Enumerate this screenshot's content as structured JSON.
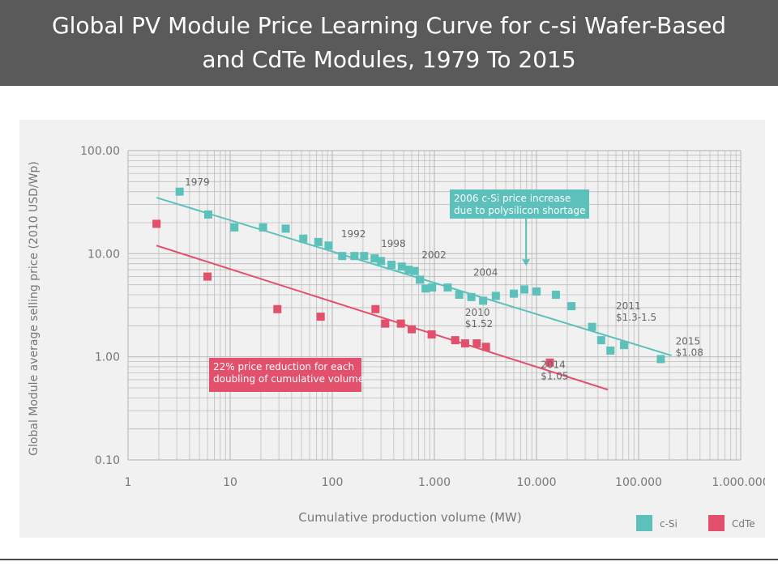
{
  "page_title": "Global PV Module Price Learning Curve for c-si Wafer-Based and CdTe Modules, 1979 To 2015",
  "colors": {
    "csi": "#5cc1bb",
    "cdte": "#e3506c",
    "axis_text": "#777777",
    "grid": "#bdbdbd"
  },
  "chart_data": {
    "type": "scatter",
    "xscale": "log",
    "yscale": "log",
    "xlim": [
      1,
      1000000
    ],
    "ylim": [
      0.1,
      100
    ],
    "xlabel": "Cumulative production volume (MW)",
    "ylabel": "Global Module average selling price (2010 USD/Wp)",
    "x_ticks": [
      {
        "value": 1,
        "label": "1"
      },
      {
        "value": 10,
        "label": "10"
      },
      {
        "value": 100,
        "label": "100"
      },
      {
        "value": 1000,
        "label": "1.000"
      },
      {
        "value": 10000,
        "label": "10.000"
      },
      {
        "value": 100000,
        "label": "100.000"
      },
      {
        "value": 1000000,
        "label": "1.000.000"
      }
    ],
    "y_ticks": [
      {
        "value": 100,
        "label": "100.00"
      },
      {
        "value": 10,
        "label": "10.00"
      },
      {
        "value": 1,
        "label": "1.00"
      },
      {
        "value": 0.1,
        "label": "0.10"
      }
    ],
    "grid": true,
    "legend_position": "bottom-right",
    "series": [
      {
        "name": "c-Si",
        "color": "#5cc1bb",
        "points": [
          [
            3.2,
            40
          ],
          [
            6.1,
            24
          ],
          [
            11,
            18
          ],
          [
            21,
            18
          ],
          [
            35,
            17.5
          ],
          [
            52,
            14
          ],
          [
            73,
            13
          ],
          [
            92,
            12
          ],
          [
            125,
            9.5
          ],
          [
            165,
            9.5
          ],
          [
            205,
            9.5
          ],
          [
            260,
            9
          ],
          [
            300,
            8.5
          ],
          [
            380,
            7.8
          ],
          [
            480,
            7.5
          ],
          [
            560,
            7
          ],
          [
            640,
            6.8
          ],
          [
            720,
            5.6
          ],
          [
            820,
            4.6
          ],
          [
            950,
            4.7
          ],
          [
            1350,
            4.7
          ],
          [
            1750,
            4
          ],
          [
            2300,
            3.8
          ],
          [
            3000,
            3.5
          ],
          [
            4000,
            3.9
          ],
          [
            6000,
            4.1
          ],
          [
            7600,
            4.5
          ],
          [
            10000,
            4.3
          ],
          [
            15500,
            4
          ],
          [
            22000,
            3.1
          ],
          [
            35000,
            1.95
          ],
          [
            43000,
            1.45
          ],
          [
            53000,
            1.15
          ],
          [
            72000,
            1.3
          ],
          [
            165000,
            0.95
          ]
        ],
        "trend": [
          [
            1.9,
            35
          ],
          [
            210000,
            1.03
          ]
        ]
      },
      {
        "name": "CdTe",
        "color": "#e3506c",
        "points": [
          [
            1.9,
            19.5
          ],
          [
            6,
            6
          ],
          [
            29,
            2.9
          ],
          [
            77,
            2.45
          ],
          [
            265,
            2.9
          ],
          [
            330,
            2.1
          ],
          [
            470,
            2.1
          ],
          [
            600,
            1.85
          ],
          [
            940,
            1.65
          ],
          [
            1600,
            1.45
          ],
          [
            2000,
            1.35
          ],
          [
            2600,
            1.35
          ],
          [
            3200,
            1.25
          ],
          [
            13500,
            0.88
          ]
        ],
        "trend": [
          [
            1.9,
            12
          ],
          [
            50000,
            0.48
          ]
        ]
      }
    ],
    "annotations": [
      {
        "lines": [
          "1979"
        ],
        "x": 3.6,
        "y": 46
      },
      {
        "lines": [
          "1992"
        ],
        "x": 122,
        "y": 14.5
      },
      {
        "lines": [
          "1998"
        ],
        "x": 300,
        "y": 11.6
      },
      {
        "lines": [
          "2002"
        ],
        "x": 750,
        "y": 9.0
      },
      {
        "lines": [
          "2004"
        ],
        "x": 2400,
        "y": 6.1
      },
      {
        "lines": [
          "2010",
          "$1.52"
        ],
        "x": 2000,
        "y": 2.5
      },
      {
        "lines": [
          "2011",
          "$1.3-1.5"
        ],
        "x": 60000,
        "y": 2.9
      },
      {
        "lines": [
          "2015",
          "$1.08"
        ],
        "x": 230000,
        "y": 1.31
      },
      {
        "lines": [
          "2014",
          "$1.05"
        ],
        "x": 11000,
        "y": 0.78
      }
    ],
    "callouts": [
      {
        "lines": [
          "2006 c-Si price increase",
          "due to polysilicon shortage"
        ],
        "color": "#5cc1bb",
        "arrow_x": 7900,
        "arrow_y": 7.5
      },
      {
        "lines": [
          "22% price reduction for each",
          "doubling of cumulative volume"
        ],
        "color": "#e3506c"
      }
    ]
  }
}
